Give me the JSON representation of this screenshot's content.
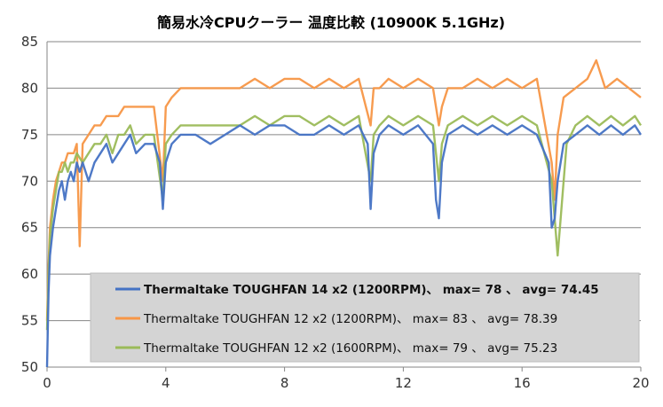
{
  "chart_data": {
    "type": "line",
    "title": "簡易水冷CPUクーラー 温度比較 (10900K 5.1GHz)",
    "xlabel": "",
    "ylabel": "",
    "xlim": [
      0,
      20
    ],
    "ylim": [
      50,
      85
    ],
    "x_ticks": [
      0,
      4,
      8,
      12,
      16,
      20
    ],
    "y_ticks": [
      50,
      55,
      60,
      65,
      70,
      75,
      80,
      85
    ],
    "grid": "horizontal",
    "legend_position": "bottom-right",
    "series": [
      {
        "name": "Thermaltake TOUGHFAN 14 x2 (1200RPM)、 max= 78 、 avg= 74.45",
        "color": "#4472c4",
        "bold": true,
        "x": [
          0,
          0.05,
          0.1,
          0.2,
          0.3,
          0.4,
          0.5,
          0.6,
          0.7,
          0.8,
          0.9,
          1.0,
          1.1,
          1.2,
          1.4,
          1.6,
          1.8,
          2.0,
          2.2,
          2.4,
          2.6,
          2.8,
          3.0,
          3.3,
          3.6,
          3.8,
          3.9,
          4.0,
          4.2,
          4.5,
          5.0,
          5.5,
          6.0,
          6.5,
          7.0,
          7.5,
          8.0,
          8.5,
          9.0,
          9.5,
          10.0,
          10.5,
          10.8,
          10.9,
          11.0,
          11.2,
          11.5,
          12.0,
          12.5,
          13.0,
          13.1,
          13.2,
          13.3,
          13.5,
          14.0,
          14.5,
          15.0,
          15.5,
          16.0,
          16.5,
          16.9,
          17.0,
          17.1,
          17.2,
          17.4,
          17.8,
          18.2,
          18.6,
          19.0,
          19.4,
          19.8,
          20.0
        ],
        "values": [
          50,
          58,
          62,
          65,
          67,
          69,
          70,
          68,
          70,
          71,
          70,
          72,
          71,
          72,
          70,
          72,
          73,
          74,
          72,
          73,
          74,
          75,
          73,
          74,
          74,
          72,
          67,
          72,
          74,
          75,
          75,
          74,
          75,
          76,
          75,
          76,
          76,
          75,
          75,
          76,
          75,
          76,
          74,
          67,
          73,
          75,
          76,
          75,
          76,
          74,
          68,
          66,
          72,
          75,
          76,
          75,
          76,
          75,
          76,
          75,
          72,
          65,
          66,
          70,
          74,
          75,
          76,
          75,
          76,
          75,
          76,
          75
        ]
      },
      {
        "name": "Thermaltake TOUGHFAN 12 x2 (1200RPM)、 max= 83 、 avg= 78.39",
        "color": "#f79646",
        "bold": false,
        "x": [
          0,
          0.05,
          0.1,
          0.2,
          0.3,
          0.4,
          0.5,
          0.6,
          0.7,
          0.8,
          0.9,
          1.0,
          1.1,
          1.2,
          1.4,
          1.6,
          1.8,
          2.0,
          2.2,
          2.4,
          2.6,
          2.8,
          3.0,
          3.3,
          3.6,
          3.9,
          4.0,
          4.2,
          4.5,
          5.0,
          5.5,
          6.0,
          6.5,
          7.0,
          7.5,
          8.0,
          8.5,
          9.0,
          9.5,
          10.0,
          10.5,
          10.9,
          11.0,
          11.2,
          11.5,
          12.0,
          12.5,
          13.0,
          13.2,
          13.3,
          13.5,
          14.0,
          14.5,
          15.0,
          15.5,
          16.0,
          16.5,
          17.0,
          17.1,
          17.2,
          17.4,
          17.8,
          18.2,
          18.5,
          18.8,
          19.2,
          19.6,
          20.0
        ],
        "values": [
          55,
          61,
          65,
          68,
          70,
          71,
          72,
          72,
          73,
          73,
          73,
          74,
          63,
          74,
          75,
          76,
          76,
          77,
          77,
          77,
          78,
          78,
          78,
          78,
          78,
          70,
          78,
          79,
          80,
          80,
          80,
          80,
          80,
          81,
          80,
          81,
          81,
          80,
          81,
          80,
          81,
          76,
          80,
          80,
          81,
          80,
          81,
          80,
          76,
          78,
          80,
          80,
          81,
          80,
          81,
          80,
          81,
          72,
          68,
          75,
          79,
          80,
          81,
          83,
          80,
          81,
          80,
          79
        ]
      },
      {
        "name": "Thermaltake TOUGHFAN 12 x2 (1600RPM)、 max= 79 、 avg= 75.23",
        "color": "#9bbb59",
        "bold": false,
        "x": [
          0,
          0.05,
          0.1,
          0.2,
          0.3,
          0.4,
          0.5,
          0.6,
          0.7,
          0.8,
          0.9,
          1.0,
          1.2,
          1.4,
          1.6,
          1.8,
          2.0,
          2.2,
          2.4,
          2.6,
          2.8,
          3.0,
          3.3,
          3.6,
          3.9,
          4.0,
          4.2,
          4.5,
          5.0,
          5.5,
          6.0,
          6.5,
          7.0,
          7.5,
          8.0,
          8.5,
          9.0,
          9.5,
          10.0,
          10.5,
          10.9,
          11.0,
          11.2,
          11.5,
          12.0,
          12.5,
          13.0,
          13.2,
          13.3,
          13.5,
          14.0,
          14.5,
          15.0,
          15.5,
          16.0,
          16.5,
          17.0,
          17.2,
          17.3,
          17.5,
          17.8,
          18.2,
          18.6,
          19.0,
          19.4,
          19.8,
          20.0
        ],
        "values": [
          54,
          60,
          64,
          67,
          69,
          71,
          71,
          72,
          71,
          72,
          72,
          73,
          72,
          73,
          74,
          74,
          75,
          73,
          75,
          75,
          76,
          74,
          75,
          75,
          68,
          74,
          75,
          76,
          76,
          76,
          76,
          76,
          77,
          76,
          77,
          77,
          76,
          77,
          76,
          77,
          70,
          75,
          76,
          77,
          76,
          77,
          76,
          70,
          74,
          76,
          77,
          76,
          77,
          76,
          77,
          76,
          70,
          62,
          66,
          74,
          76,
          77,
          76,
          77,
          76,
          77,
          76
        ]
      }
    ]
  }
}
